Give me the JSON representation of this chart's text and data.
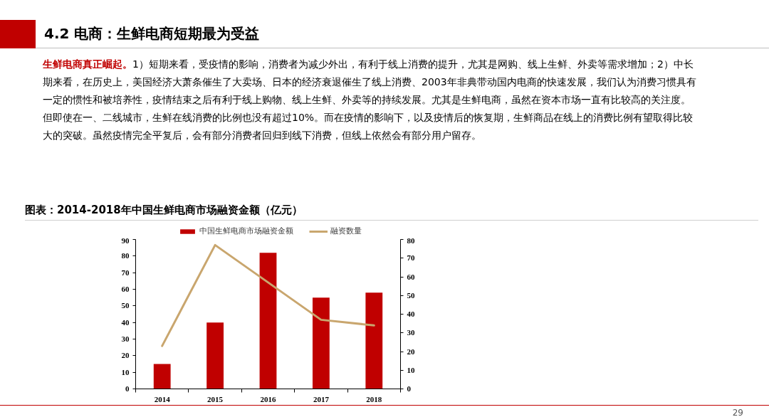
{
  "chart_data": {
    "type": "bar",
    "title": "4.2 电商：生鲜电商短期最为受益",
    "subtitle": "图表：2014-2018年中国生鲜电商市场融资金额（亿元）",
    "annotations": [
      "生鲜电商真正崛起。",
      "1）短期来看，受疫情的影响，消费者为减少外出，有利于线上消费的提升，尤其是网购、线上生鲜、外卖等需求增加；2）中长期来看，在历史上，美国经济大萧条催生了大卖场、日本的经济衰退催生了线上消费、2003年非典带动国内电商的快速发展，我们认为消费习惯具有一定的惯性和被培养性，疫情结束之后有利于线上购物、线上生鲜、外卖等的持续发展。尤其是生鲜电商，虽然在资本市场一直有比较高的关注度。但即使在一、二线城市，生鲜在线消费的比例也没有超过10%。而在疫情的影响下，以及疫情后的恢复期，生鲜商品在线上的消费比例有望取得比较大的突破。虽然疫情完全平复后，会有部分消费者回归到线下消费，但线上依然会有部分用户留存。",
      "29"
    ],
    "categories": [
      "2014",
      "2015",
      "2016",
      "2017",
      "2018"
    ],
    "series": [
      {
        "name": "中国生鲜电商市场融资金额",
        "color": "#c00000",
        "values": [
          15,
          40,
          82,
          55,
          58
        ]
      },
      {
        "name": "融资数量",
        "type": "line",
        "axis": "y2",
        "color": "#c9a66e",
        "values": [
          23,
          77,
          57,
          37,
          34
        ]
      }
    ],
    "ylim": [
      0,
      90
    ],
    "yticks": [
      0,
      10,
      20,
      30,
      40,
      50,
      60,
      70,
      80,
      90
    ],
    "y2lim": [
      0,
      80
    ],
    "y2ticks": [
      0,
      10,
      20,
      30,
      40,
      50,
      60,
      70,
      80
    ],
    "legend": "top"
  }
}
